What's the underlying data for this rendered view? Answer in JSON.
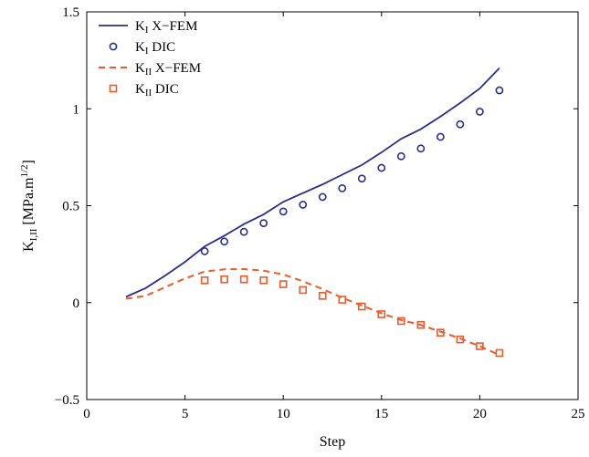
{
  "chart_data": {
    "type": "line",
    "title": "",
    "xlabel": "Step",
    "ylabel": {
      "base": "K",
      "subscript": "I,II",
      "unit": "[MPa.m",
      "sup": "1/2",
      "close": "]"
    },
    "xlim": [
      0,
      25
    ],
    "ylim": [
      -0.5,
      1.5
    ],
    "xticks": [
      0,
      5,
      10,
      15,
      20,
      25
    ],
    "yticks": [
      -0.5,
      0,
      0.5,
      1,
      1.5
    ],
    "xtick_labels": [
      "0",
      "5",
      "10",
      "15",
      "20",
      "25"
    ],
    "ytick_labels": [
      "−0.5",
      "0",
      "0.5",
      "1",
      "1.5"
    ],
    "grid": false,
    "legend_position": "top-left",
    "series": [
      {
        "name": {
          "base": "K",
          "sub": "I",
          "rest": " X−FEM"
        },
        "style": "solid-line",
        "color": "#2b2d8f",
        "x": [
          2,
          3,
          4,
          5,
          6,
          7,
          8,
          9,
          10,
          11,
          12,
          13,
          14,
          15,
          16,
          17,
          18,
          19,
          20,
          21
        ],
        "y": [
          0.03,
          0.075,
          0.14,
          0.21,
          0.29,
          0.345,
          0.405,
          0.455,
          0.52,
          0.565,
          0.61,
          0.66,
          0.71,
          0.775,
          0.845,
          0.895,
          0.96,
          1.03,
          1.105,
          1.21
        ]
      },
      {
        "name": {
          "base": "K",
          "sub": "I",
          "rest": " DIC"
        },
        "style": "circle-marker",
        "color": "#2b2d8f",
        "x": [
          6,
          7,
          8,
          9,
          10,
          11,
          12,
          13,
          14,
          15,
          16,
          17,
          18,
          19,
          20,
          21
        ],
        "y": [
          0.265,
          0.315,
          0.365,
          0.41,
          0.47,
          0.505,
          0.545,
          0.59,
          0.64,
          0.695,
          0.755,
          0.795,
          0.855,
          0.92,
          0.985,
          1.095
        ]
      },
      {
        "name": {
          "base": "K",
          "sub": "II",
          "rest": " X−FEM"
        },
        "style": "dashed-line",
        "color": "#ee5a2a",
        "x": [
          2,
          3,
          4,
          5,
          6,
          7,
          8,
          9,
          10,
          11,
          12,
          13,
          14,
          15,
          16,
          17,
          18,
          19,
          20,
          21
        ],
        "y": [
          0.02,
          0.035,
          0.08,
          0.125,
          0.16,
          0.172,
          0.173,
          0.165,
          0.145,
          0.11,
          0.07,
          0.025,
          -0.015,
          -0.055,
          -0.09,
          -0.115,
          -0.15,
          -0.185,
          -0.225,
          -0.27
        ]
      },
      {
        "name": {
          "base": "K",
          "sub": "II",
          "rest": " DIC"
        },
        "style": "square-marker",
        "color": "#ee5a2a",
        "x": [
          6,
          7,
          8,
          9,
          10,
          11,
          12,
          13,
          14,
          15,
          16,
          17,
          18,
          19,
          20,
          21
        ],
        "y": [
          0.115,
          0.12,
          0.12,
          0.115,
          0.095,
          0.065,
          0.035,
          0.015,
          -0.02,
          -0.06,
          -0.095,
          -0.115,
          -0.155,
          -0.19,
          -0.225,
          -0.26
        ]
      }
    ]
  }
}
